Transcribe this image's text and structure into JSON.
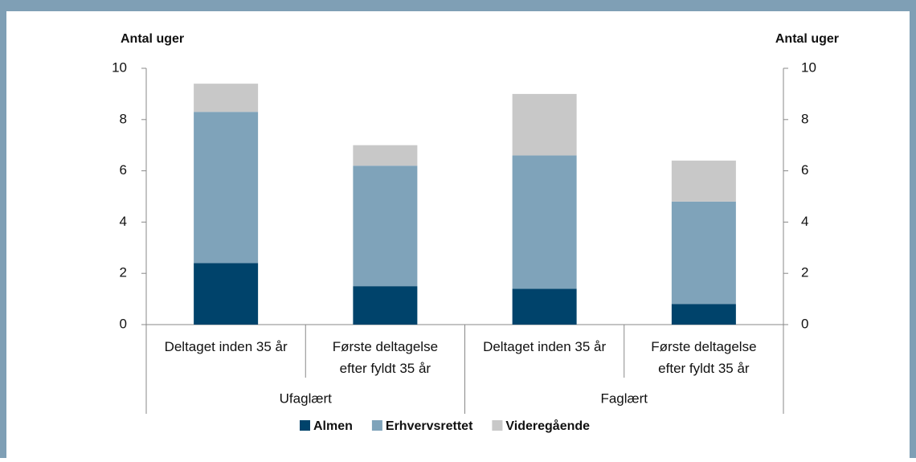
{
  "chart_data": {
    "type": "stacked_bar",
    "y_label": "Antal uger",
    "y2_label": "Antal uger",
    "categories": [
      [
        "Deltaget inden 35 år"
      ],
      [
        "Første deltagelse",
        "efter fyldt 35 år"
      ],
      [
        "Deltaget inden 35 år"
      ],
      [
        "Første deltagelse",
        "efter fyldt 35 år"
      ]
    ],
    "groups": [
      "Ufaglært",
      "Faglært"
    ],
    "series": [
      {
        "name": "Almen",
        "color": "#00436b",
        "values": [
          2.4,
          1.5,
          1.4,
          0.8
        ]
      },
      {
        "name": "Erhvervsrettet",
        "color": "#7fa3ba",
        "values": [
          5.9,
          4.7,
          5.2,
          4.0
        ]
      },
      {
        "name": "Videregående",
        "color": "#c8c8c8",
        "values": [
          1.1,
          0.8,
          2.4,
          1.6
        ]
      }
    ],
    "ylim": [
      0,
      10
    ],
    "yticks": [
      0,
      2,
      4,
      6,
      8,
      10
    ],
    "y2lim": [
      0,
      10
    ],
    "y2ticks": [
      0,
      2,
      4,
      6,
      8,
      10
    ],
    "grid": false,
    "legend": "bottom"
  }
}
